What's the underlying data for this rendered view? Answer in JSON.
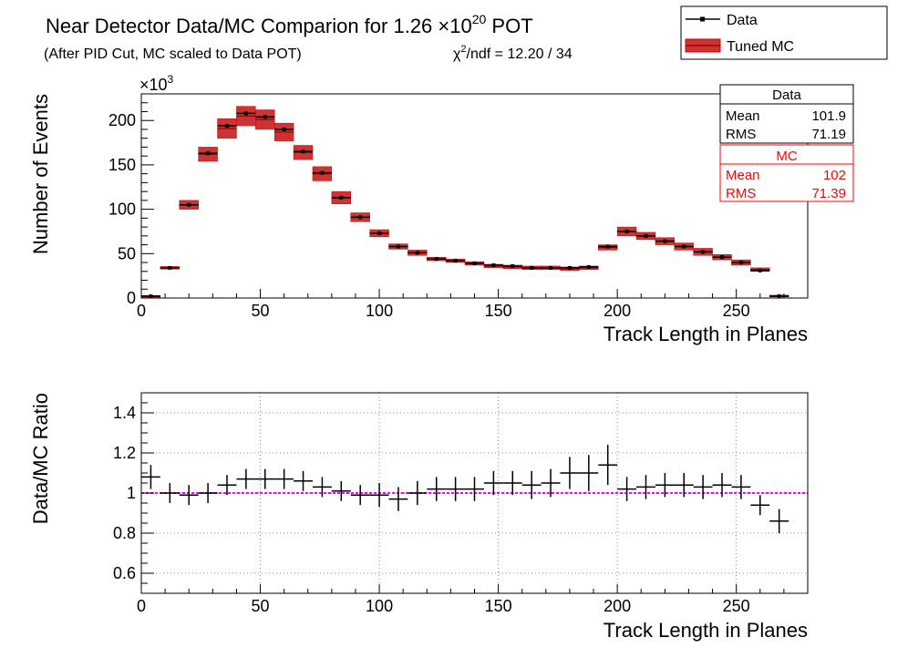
{
  "header": {
    "title": "Near Detector Data/MC Comparion for 1.26 ×10",
    "title_exponent": "20",
    "title_suffix": " POT",
    "subtitle": "(After PID Cut, MC scaled to Data POT)",
    "chi2_prefix": "χ",
    "chi2_exponent": "2",
    "chi2_suffix": "/ndf = 12.20 / 34"
  },
  "legend": {
    "data_label": "Data",
    "mc_label": "Tuned MC"
  },
  "stats": {
    "data": {
      "title": "Data",
      "mean_label": "Mean",
      "mean": "101.9",
      "rms_label": "RMS",
      "rms": "71.19"
    },
    "mc": {
      "title": "MC",
      "mean_label": "Mean",
      "mean": "102",
      "rms_label": "RMS",
      "rms": "71.39"
    }
  },
  "colors": {
    "data": "#000000",
    "mc_fill": "#cc3333",
    "mc_line": "#cc0000",
    "stats_mc": "#ff0000",
    "ratio_ref": "#ff00ff"
  },
  "chart_data": [
    {
      "type": "bar",
      "name": "top",
      "xlabel": "Track Length in Planes",
      "ylabel": "Number of Events",
      "y_multiplier": "×10",
      "y_multiplier_exponent": "3",
      "xlim": [
        0,
        280
      ],
      "ylim": [
        0,
        230
      ],
      "xticks": [
        0,
        50,
        100,
        150,
        200,
        250
      ],
      "yticks": [
        0,
        50,
        100,
        150,
        200
      ],
      "bin_width": 8,
      "bin_centers": [
        4,
        12,
        20,
        28,
        36,
        44,
        52,
        60,
        68,
        76,
        84,
        92,
        100,
        108,
        116,
        124,
        132,
        140,
        148,
        156,
        164,
        172,
        180,
        188,
        196,
        204,
        212,
        220,
        228,
        236,
        244,
        252,
        260,
        268
      ],
      "series": [
        {
          "name": "Data",
          "values": [
            2,
            34,
            105,
            163,
            194,
            208,
            204,
            190,
            165,
            141,
            113,
            91,
            73,
            58,
            51,
            44,
            42,
            39,
            37,
            36,
            34,
            34,
            34,
            35,
            58,
            75,
            70,
            64,
            58,
            52,
            46,
            40,
            31,
            2
          ]
        },
        {
          "name": "Tuned MC",
          "values": [
            1.9,
            34,
            105,
            162,
            191,
            205,
            201,
            187,
            164,
            140,
            113,
            91,
            73,
            58,
            51,
            44,
            42,
            39,
            36,
            35,
            34,
            34,
            33,
            34,
            57,
            75,
            70,
            64,
            58,
            52,
            46,
            40,
            32,
            2.2
          ],
          "band_halfwidth": [
            1,
            1.5,
            5,
            8,
            11,
            11,
            11,
            10,
            8,
            8,
            7,
            5,
            4,
            3,
            3,
            2,
            2,
            2,
            2,
            2,
            2,
            2,
            2,
            2,
            3,
            5,
            4,
            4,
            4,
            4,
            3,
            3,
            2,
            1
          ]
        }
      ]
    },
    {
      "type": "scatter",
      "name": "bottom",
      "xlabel": "Track Length in Planes",
      "ylabel": "Data/MC Ratio",
      "xlim": [
        0,
        280
      ],
      "ylim": [
        0.5,
        1.5
      ],
      "xticks": [
        0,
        50,
        100,
        150,
        200,
        250
      ],
      "yticks": [
        0.6,
        0.8,
        1,
        1.2,
        1.4
      ],
      "reference_line": 1,
      "bin_width": 8,
      "bin_centers": [
        4,
        12,
        20,
        28,
        36,
        44,
        52,
        60,
        68,
        76,
        84,
        92,
        100,
        108,
        116,
        124,
        132,
        140,
        148,
        156,
        164,
        172,
        180,
        188,
        196,
        204,
        212,
        220,
        228,
        236,
        244,
        252,
        260,
        268
      ],
      "values": [
        1.08,
        1,
        0.99,
        1,
        1.04,
        1.07,
        1.07,
        1.07,
        1.06,
        1.03,
        1.01,
        0.99,
        0.99,
        0.97,
        1,
        1.02,
        1.02,
        1.02,
        1.05,
        1.05,
        1.04,
        1.05,
        1.1,
        1.1,
        1.14,
        1.02,
        1.03,
        1.04,
        1.04,
        1.03,
        1.04,
        1.03,
        0.94,
        0.86
      ],
      "errors": [
        0.06,
        0.05,
        0.05,
        0.05,
        0.05,
        0.05,
        0.05,
        0.05,
        0.05,
        0.05,
        0.05,
        0.05,
        0.06,
        0.06,
        0.06,
        0.06,
        0.06,
        0.06,
        0.06,
        0.06,
        0.07,
        0.07,
        0.08,
        0.09,
        0.1,
        0.06,
        0.06,
        0.06,
        0.06,
        0.06,
        0.06,
        0.06,
        0.05,
        0.06
      ]
    }
  ]
}
